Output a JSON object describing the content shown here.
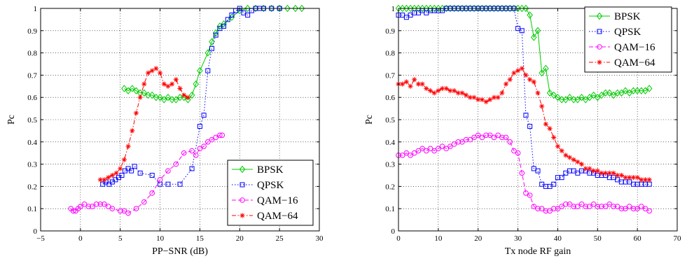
{
  "chart_data": [
    {
      "type": "line",
      "xlabel": "PP−SNR (dB)",
      "ylabel": "Pc",
      "xlim": [
        -5,
        30
      ],
      "ylim": [
        0,
        1
      ],
      "xticks": [
        "−5",
        "0",
        "5",
        "10",
        "15",
        "20",
        "25",
        "30"
      ],
      "yticks": [
        "0",
        "0.1",
        "0.2",
        "0.3",
        "0.4",
        "0.5",
        "0.6",
        "0.7",
        "0.8",
        "0.9",
        "1"
      ],
      "grid": true,
      "legend_position": "bottom-right",
      "series": [
        {
          "name": "BPSK",
          "color": "#00cc00",
          "marker": "diamond",
          "line": "solid",
          "x": [
            5.5,
            6.0,
            6.5,
            7.0,
            7.5,
            8.0,
            8.5,
            9.0,
            9.5,
            10.0,
            10.5,
            11.0,
            11.5,
            12.0,
            12.5,
            13.0,
            13.5,
            14.0,
            14.5,
            15.0,
            16.0,
            16.5,
            17.0,
            17.5,
            18.0,
            19.0,
            20.0,
            21.0,
            22.0,
            23.0,
            24.0,
            25.0,
            26.0,
            27.0,
            27.8
          ],
          "y": [
            0.64,
            0.63,
            0.64,
            0.63,
            0.62,
            0.62,
            0.61,
            0.61,
            0.6,
            0.6,
            0.59,
            0.6,
            0.59,
            0.59,
            0.6,
            0.6,
            0.59,
            0.61,
            0.66,
            0.72,
            0.8,
            0.85,
            0.89,
            0.92,
            0.93,
            0.96,
            0.99,
            1.0,
            1.0,
            1.0,
            1.0,
            1.0,
            1.0,
            1.0,
            1.0
          ]
        },
        {
          "name": "QPSK",
          "color": "#0000ff",
          "marker": "square",
          "line": "dotted",
          "x": [
            2.8,
            3.2,
            3.6,
            4.0,
            4.4,
            4.8,
            5.2,
            5.6,
            6.0,
            6.4,
            6.8,
            7.5,
            9.0,
            10.0,
            11.0,
            12.5,
            14.0,
            15.0,
            15.5,
            16.0,
            16.5,
            17.0,
            17.5,
            18.0,
            18.5,
            19.0,
            19.5,
            20.0,
            20.5,
            21.0,
            21.5,
            22.0,
            22.5,
            23.0,
            24.0,
            25.0
          ],
          "y": [
            0.21,
            0.22,
            0.21,
            0.22,
            0.23,
            0.24,
            0.25,
            0.27,
            0.28,
            0.27,
            0.29,
            0.26,
            0.25,
            0.21,
            0.21,
            0.21,
            0.28,
            0.47,
            0.52,
            0.72,
            0.82,
            0.88,
            0.91,
            0.92,
            0.95,
            0.97,
            0.99,
            1.0,
            0.98,
            0.97,
            0.99,
            1.0,
            1.0,
            1.0,
            1.0,
            1.0
          ]
        },
        {
          "name": "QAM−16",
          "color": "#ff00ff",
          "marker": "circle",
          "line": "dashed",
          "x": [
            -1.2,
            -0.9,
            -0.6,
            -0.3,
            0.0,
            0.5,
            1.0,
            1.5,
            2.0,
            2.5,
            3.0,
            3.5,
            4.0,
            5.0,
            5.5,
            6.0,
            7.0,
            8.0,
            9.0,
            10.0,
            11.0,
            12.0,
            13.0,
            14.0,
            14.5,
            15.0,
            15.5,
            16.0,
            16.5,
            17.0,
            17.5,
            17.8
          ],
          "y": [
            0.1,
            0.09,
            0.09,
            0.1,
            0.11,
            0.12,
            0.11,
            0.11,
            0.12,
            0.12,
            0.12,
            0.11,
            0.1,
            0.09,
            0.09,
            0.08,
            0.1,
            0.13,
            0.17,
            0.23,
            0.27,
            0.3,
            0.35,
            0.36,
            0.34,
            0.37,
            0.38,
            0.4,
            0.41,
            0.42,
            0.43,
            0.43
          ]
        },
        {
          "name": "QAM−64",
          "color": "#ff0000",
          "marker": "star",
          "line": "dashdot",
          "x": [
            2.5,
            3.0,
            3.5,
            4.0,
            4.5,
            5.0,
            5.5,
            6.0,
            6.5,
            7.0,
            7.5,
            8.0,
            8.5,
            9.0,
            9.5,
            10.0,
            10.5,
            11.0,
            11.5,
            12.0,
            12.5,
            13.0,
            13.5
          ],
          "y": [
            0.23,
            0.23,
            0.24,
            0.25,
            0.26,
            0.28,
            0.32,
            0.38,
            0.45,
            0.53,
            0.6,
            0.66,
            0.71,
            0.72,
            0.73,
            0.71,
            0.66,
            0.65,
            0.66,
            0.68,
            0.64,
            0.61,
            0.6
          ]
        }
      ]
    },
    {
      "type": "line",
      "xlabel": "Tx node RF gain",
      "ylabel": "Pc",
      "xlim": [
        0,
        70
      ],
      "ylim": [
        0,
        1
      ],
      "xticks": [
        "0",
        "10",
        "20",
        "30",
        "40",
        "50",
        "60",
        "70"
      ],
      "yticks": [
        "0",
        "0.1",
        "0.2",
        "0.3",
        "0.4",
        "0.5",
        "0.6",
        "0.7",
        "0.8",
        "0.9",
        "1"
      ],
      "grid": true,
      "legend_position": "top-right",
      "series": [
        {
          "name": "BPSK",
          "color": "#00cc00",
          "marker": "diamond",
          "line": "solid",
          "x": [
            0,
            1,
            2,
            3,
            4,
            5,
            6,
            7,
            8,
            9,
            10,
            11,
            12,
            13,
            14,
            15,
            16,
            17,
            18,
            19,
            20,
            21,
            22,
            23,
            24,
            25,
            26,
            27,
            28,
            29,
            30,
            31,
            32,
            33,
            34,
            35,
            36,
            37,
            38,
            39,
            40,
            41,
            42,
            43,
            44,
            45,
            46,
            47,
            48,
            49,
            50,
            51,
            52,
            53,
            54,
            55,
            56,
            57,
            58,
            59,
            60,
            61,
            62,
            63
          ],
          "y": [
            1,
            1,
            1,
            1,
            1,
            1,
            1,
            1,
            1,
            1,
            1,
            1,
            1,
            1,
            1,
            1,
            1,
            1,
            1,
            1,
            1,
            1,
            1,
            1,
            1,
            1,
            1,
            1,
            1,
            1,
            1,
            1,
            1,
            0.97,
            0.87,
            0.9,
            0.71,
            0.73,
            0.62,
            0.61,
            0.6,
            0.59,
            0.59,
            0.6,
            0.59,
            0.59,
            0.6,
            0.59,
            0.6,
            0.61,
            0.6,
            0.61,
            0.62,
            0.62,
            0.61,
            0.62,
            0.62,
            0.63,
            0.62,
            0.63,
            0.63,
            0.63,
            0.63,
            0.64
          ]
        },
        {
          "name": "QPSK",
          "color": "#0000ff",
          "marker": "square",
          "line": "dotted",
          "x": [
            0,
            1,
            2,
            3,
            4,
            5,
            6,
            7,
            8,
            9,
            10,
            11,
            12,
            13,
            14,
            15,
            16,
            17,
            18,
            19,
            20,
            21,
            22,
            23,
            24,
            25,
            26,
            27,
            28,
            29,
            30,
            31,
            32,
            33,
            34,
            35,
            36,
            37,
            38,
            39,
            40,
            41,
            42,
            43,
            44,
            45,
            46,
            47,
            48,
            49,
            50,
            51,
            52,
            53,
            54,
            55,
            56,
            57,
            58,
            59,
            60,
            61,
            62,
            63
          ],
          "y": [
            0.97,
            0.97,
            0.96,
            0.97,
            0.98,
            0.98,
            0.99,
            0.98,
            0.99,
            0.99,
            0.99,
            0.99,
            1,
            1,
            1,
            1,
            1,
            1,
            1,
            1,
            1,
            1,
            1,
            1,
            1,
            1,
            1,
            1,
            1,
            1,
            0.91,
            0.9,
            0.52,
            0.47,
            0.28,
            0.27,
            0.21,
            0.2,
            0.2,
            0.21,
            0.24,
            0.24,
            0.26,
            0.27,
            0.27,
            0.26,
            0.27,
            0.27,
            0.26,
            0.26,
            0.25,
            0.25,
            0.25,
            0.24,
            0.24,
            0.23,
            0.22,
            0.22,
            0.22,
            0.21,
            0.21,
            0.21,
            0.21,
            0.21
          ]
        },
        {
          "name": "QAM−16",
          "color": "#ff00ff",
          "marker": "circle",
          "line": "dashed",
          "x": [
            0,
            1,
            2,
            3,
            4,
            5,
            6,
            7,
            8,
            9,
            10,
            11,
            12,
            13,
            14,
            15,
            16,
            17,
            18,
            19,
            20,
            21,
            22,
            23,
            24,
            25,
            26,
            27,
            28,
            29,
            30,
            31,
            32,
            33,
            34,
            35,
            36,
            37,
            38,
            39,
            40,
            41,
            42,
            43,
            44,
            45,
            46,
            47,
            48,
            49,
            50,
            51,
            52,
            53,
            54,
            55,
            56,
            57,
            58,
            59,
            60,
            61,
            62,
            63
          ],
          "y": [
            0.34,
            0.34,
            0.35,
            0.34,
            0.35,
            0.36,
            0.37,
            0.36,
            0.37,
            0.36,
            0.37,
            0.38,
            0.37,
            0.38,
            0.39,
            0.4,
            0.4,
            0.41,
            0.41,
            0.42,
            0.43,
            0.42,
            0.43,
            0.43,
            0.42,
            0.43,
            0.42,
            0.42,
            0.4,
            0.36,
            0.35,
            0.26,
            0.17,
            0.16,
            0.11,
            0.1,
            0.1,
            0.09,
            0.09,
            0.1,
            0.1,
            0.11,
            0.12,
            0.12,
            0.11,
            0.11,
            0.12,
            0.11,
            0.11,
            0.12,
            0.11,
            0.11,
            0.11,
            0.12,
            0.11,
            0.11,
            0.1,
            0.1,
            0.11,
            0.1,
            0.1,
            0.11,
            0.1,
            0.09
          ]
        },
        {
          "name": "QAM−64",
          "color": "#ff0000",
          "marker": "star",
          "line": "dashdot",
          "x": [
            0,
            1,
            2,
            3,
            4,
            5,
            6,
            7,
            8,
            9,
            10,
            11,
            12,
            13,
            14,
            15,
            16,
            17,
            18,
            19,
            20,
            21,
            22,
            23,
            24,
            25,
            26,
            27,
            28,
            29,
            30,
            31,
            32,
            33,
            34,
            35,
            36,
            37,
            38,
            39,
            40,
            41,
            42,
            43,
            44,
            45,
            46,
            47,
            48,
            49,
            50,
            51,
            52,
            53,
            54,
            55,
            56,
            57,
            58,
            59,
            60,
            61,
            62,
            63
          ],
          "y": [
            0.66,
            0.66,
            0.67,
            0.65,
            0.68,
            0.66,
            0.66,
            0.64,
            0.63,
            0.62,
            0.63,
            0.64,
            0.64,
            0.63,
            0.63,
            0.62,
            0.62,
            0.61,
            0.6,
            0.6,
            0.59,
            0.59,
            0.58,
            0.59,
            0.6,
            0.6,
            0.62,
            0.66,
            0.68,
            0.71,
            0.72,
            0.73,
            0.7,
            0.68,
            0.67,
            0.62,
            0.56,
            0.48,
            0.46,
            0.42,
            0.38,
            0.36,
            0.34,
            0.33,
            0.32,
            0.31,
            0.3,
            0.28,
            0.28,
            0.27,
            0.27,
            0.26,
            0.26,
            0.26,
            0.26,
            0.25,
            0.25,
            0.24,
            0.24,
            0.24,
            0.24,
            0.23,
            0.23,
            0.23
          ]
        }
      ]
    }
  ]
}
